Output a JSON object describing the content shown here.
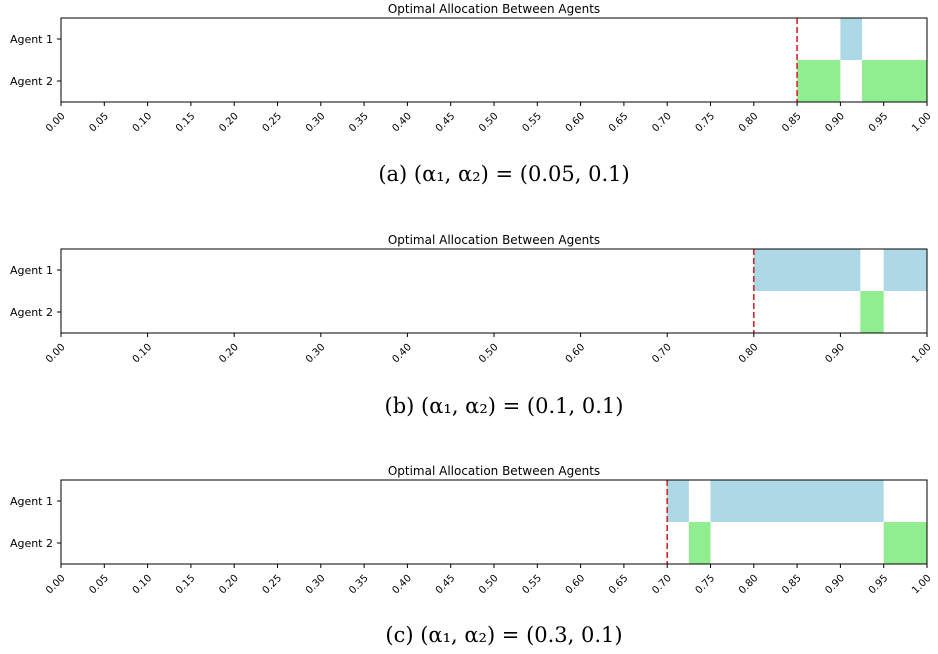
{
  "colors": {
    "agent1": "#add8e6",
    "agent2": "#90ee90",
    "threshold": "#d62728",
    "axis": "#000000"
  },
  "chart_data": [
    {
      "type": "allocation",
      "title": "Optimal Allocation Between Agents",
      "caption": "(a) (α₁, α₂) = (0.05, 0.1)",
      "xlim": [
        0,
        1
      ],
      "categories": [
        "Agent 1",
        "Agent 2"
      ],
      "xticks": [
        0.0,
        0.05,
        0.1,
        0.15,
        0.2,
        0.25,
        0.3,
        0.35,
        0.4,
        0.45,
        0.5,
        0.55,
        0.6,
        0.65,
        0.7,
        0.75,
        0.8,
        0.85,
        0.9,
        0.95,
        1.0
      ],
      "xtick_labels": [
        "0.00",
        "0.05",
        "0.10",
        "0.15",
        "0.20",
        "0.25",
        "0.30",
        "0.35",
        "0.40",
        "0.45",
        "0.50",
        "0.55",
        "0.60",
        "0.65",
        "0.70",
        "0.75",
        "0.80",
        "0.85",
        "0.90",
        "0.95",
        "1.00"
      ],
      "threshold": 0.85,
      "segments": [
        {
          "agent": "Agent 1",
          "start": 0.9,
          "end": 0.925
        },
        {
          "agent": "Agent 2",
          "start": 0.85,
          "end": 0.9
        },
        {
          "agent": "Agent 2",
          "start": 0.925,
          "end": 1.0
        }
      ]
    },
    {
      "type": "allocation",
      "title": "Optimal Allocation Between Agents",
      "caption": "(b) (α₁, α₂) = (0.1, 0.1)",
      "xlim": [
        0,
        1
      ],
      "categories": [
        "Agent 1",
        "Agent 2"
      ],
      "xticks": [
        0.0,
        0.1,
        0.2,
        0.3,
        0.4,
        0.5,
        0.6,
        0.7,
        0.8,
        0.9,
        1.0
      ],
      "xtick_labels": [
        "0.00",
        "0.10",
        "0.20",
        "0.30",
        "0.40",
        "0.50",
        "0.60",
        "0.70",
        "0.80",
        "0.90",
        "1.00"
      ],
      "threshold": 0.8,
      "segments": [
        {
          "agent": "Agent 1",
          "start": 0.8,
          "end": 0.923
        },
        {
          "agent": "Agent 1",
          "start": 0.95,
          "end": 1.0
        },
        {
          "agent": "Agent 2",
          "start": 0.923,
          "end": 0.95
        }
      ]
    },
    {
      "type": "allocation",
      "title": "Optimal Allocation Between Agents",
      "caption": "(c) (α₁, α₂) = (0.3, 0.1)",
      "xlim": [
        0,
        1
      ],
      "categories": [
        "Agent 1",
        "Agent 2"
      ],
      "xticks": [
        0.0,
        0.05,
        0.1,
        0.15,
        0.2,
        0.25,
        0.3,
        0.35,
        0.4,
        0.45,
        0.5,
        0.55,
        0.6,
        0.65,
        0.7,
        0.75,
        0.8,
        0.85,
        0.9,
        0.95,
        1.0
      ],
      "xtick_labels": [
        "0.00",
        "0.05",
        "0.10",
        "0.15",
        "0.20",
        "0.25",
        "0.30",
        "0.35",
        "0.40",
        "0.45",
        "0.50",
        "0.55",
        "0.60",
        "0.65",
        "0.70",
        "0.75",
        "0.80",
        "0.85",
        "0.90",
        "0.95",
        "1.00"
      ],
      "threshold": 0.7,
      "segments": [
        {
          "agent": "Agent 1",
          "start": 0.7,
          "end": 0.725
        },
        {
          "agent": "Agent 1",
          "start": 0.75,
          "end": 0.95
        },
        {
          "agent": "Agent 2",
          "start": 0.725,
          "end": 0.75
        },
        {
          "agent": "Agent 2",
          "start": 0.95,
          "end": 1.0
        }
      ]
    }
  ]
}
